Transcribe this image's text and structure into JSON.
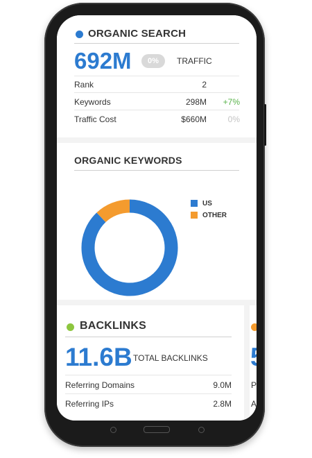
{
  "organic_search": {
    "title": "ORGANIC SEARCH",
    "dot_color": "#2c7bd0",
    "traffic_value": "692M",
    "traffic_change": "0%",
    "traffic_label": "TRAFFIC",
    "rows": [
      {
        "label": "Rank",
        "value": "2",
        "change": ""
      },
      {
        "label": "Keywords",
        "value": "298M",
        "change": "+7%"
      },
      {
        "label": "Traffic Cost",
        "value": "$660M",
        "change": "0%"
      }
    ]
  },
  "organic_keywords": {
    "title": "ORGANIC KEYWORDS",
    "chart_data": {
      "type": "pie",
      "categories": [
        "US",
        "OTHER"
      ],
      "values": [
        88,
        12
      ],
      "colors": [
        "#2c7bd0",
        "#f49b2e"
      ],
      "legend": "right"
    }
  },
  "backlinks": {
    "title": "BACKLINKS",
    "dot_color": "#8dc63f",
    "total_value": "11.6B",
    "total_label": "TOTAL BACKLINKS",
    "rows": [
      {
        "label": "Referring Domains",
        "value": "9.0M"
      },
      {
        "label": "Referring IPs",
        "value": "2.8M"
      }
    ],
    "next_card_peek": {
      "dot_color": "#f49b2e",
      "big_char": "5",
      "row1_char": "P",
      "row2_char": "A"
    }
  }
}
